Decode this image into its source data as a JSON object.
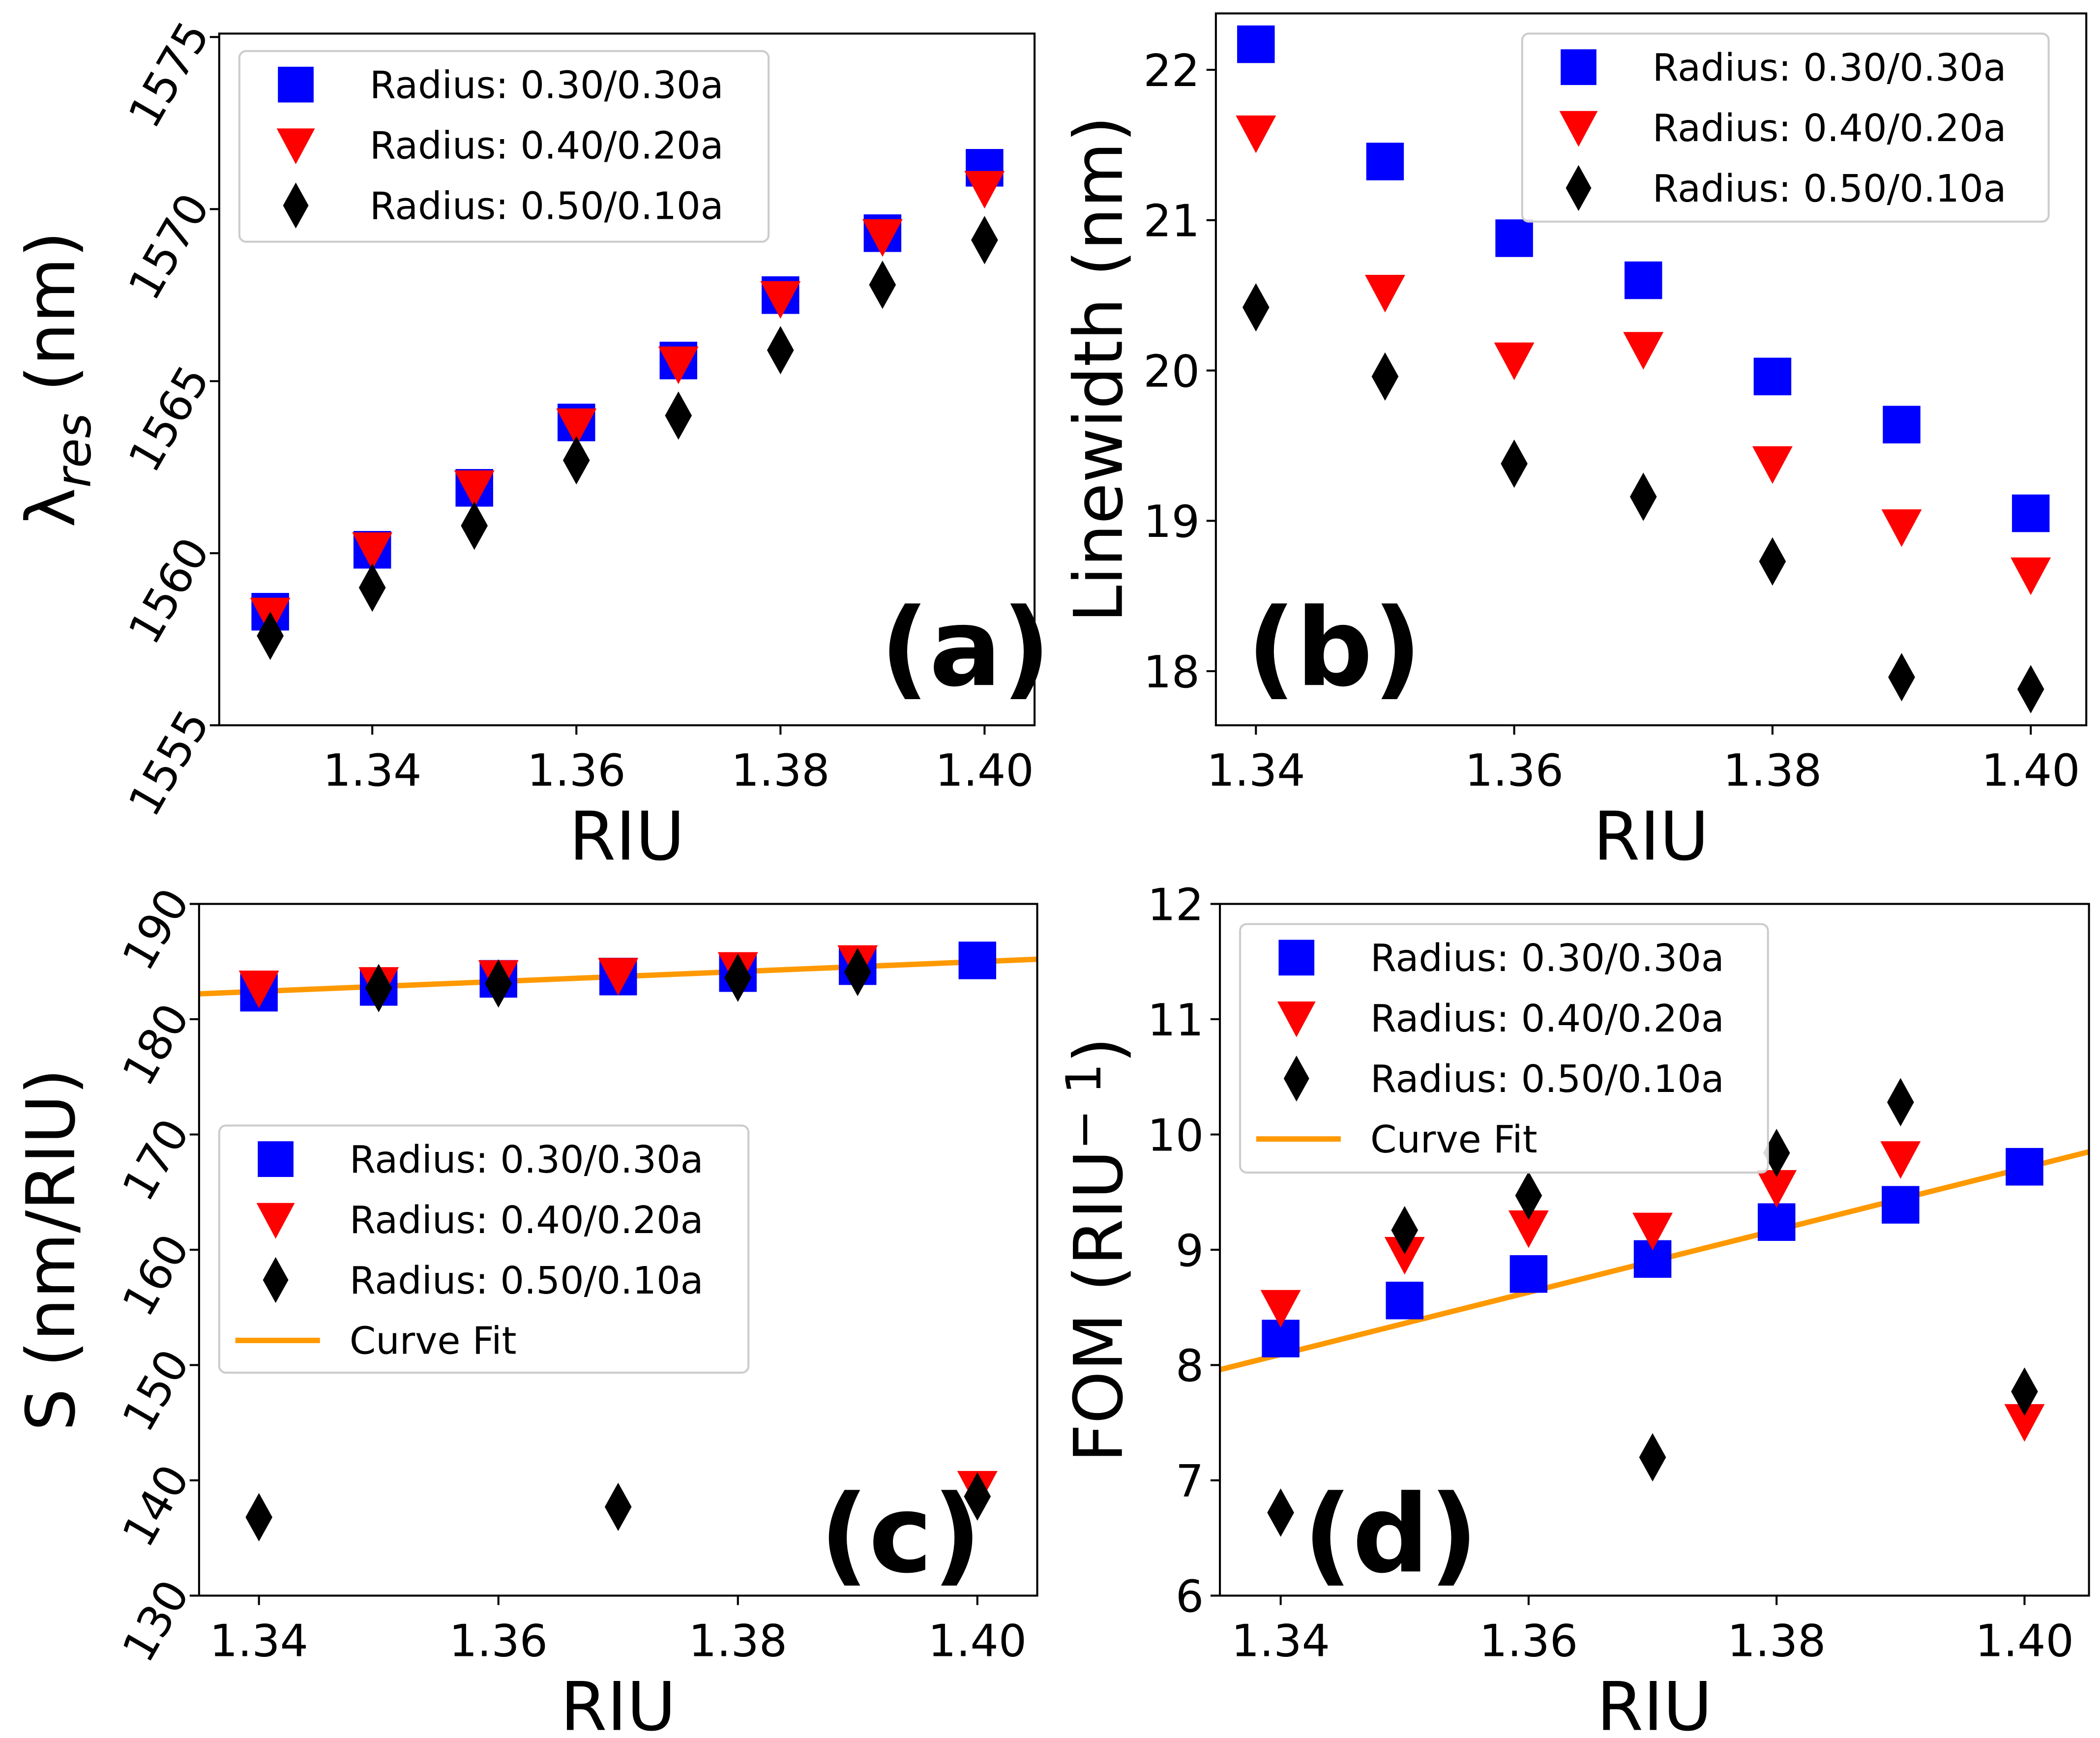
{
  "legend_labels": {
    "blue": "Radius: 0.30/0.30a",
    "red": "Radius: 0.40/0.20a",
    "black": "Radius: 0.50/0.10a",
    "fit": "Curve Fit"
  },
  "colors": {
    "blue": "#0000ff",
    "red": "#ff0000",
    "black": "#000000",
    "fit": "#ff9900"
  },
  "chart_data": [
    {
      "id": "a",
      "type": "scatter",
      "panel_label": "(a)",
      "xlabel": "RIU",
      "ylabel_main": "λ",
      "ylabel_sub": "res",
      "ylabel_tail": " (nm)",
      "xlim": [
        1.325,
        1.4049
      ],
      "ylim": [
        1555,
        1575.1
      ],
      "xticks": [
        1.34,
        1.36,
        1.38,
        1.4
      ],
      "xtick_labels": [
        "1.34",
        "1.36",
        "1.38",
        "1.40"
      ],
      "yticks": [
        1555,
        1560,
        1565,
        1570,
        1575
      ],
      "ytick_labels": [
        "1555",
        "1560",
        "1565",
        "1570",
        "1575"
      ],
      "legend": "top-left",
      "x": [
        1.33,
        1.34,
        1.35,
        1.36,
        1.37,
        1.38,
        1.39,
        1.4
      ],
      "series": [
        {
          "name": "Radius: 0.30/0.30a",
          "marker": "square",
          "color": "blue",
          "values": [
            1558.3,
            1560.1,
            1561.9,
            1563.8,
            1565.6,
            1567.5,
            1569.3,
            1571.2
          ]
        },
        {
          "name": "Radius: 0.40/0.20a",
          "marker": "triangle_down",
          "color": "red",
          "values": [
            1558.2,
            1560.1,
            1561.9,
            1563.7,
            1565.5,
            1567.4,
            1569.2,
            1570.6
          ]
        },
        {
          "name": "Radius: 0.50/0.10a",
          "marker": "diamond",
          "color": "black",
          "values": [
            1557.6,
            1559.0,
            1560.8,
            1562.7,
            1564.0,
            1565.9,
            1567.8,
            1569.1
          ]
        }
      ]
    },
    {
      "id": "b",
      "type": "scatter",
      "panel_label": "(b)",
      "xlabel": "RIU",
      "ylabel": "Linewidth (nm)",
      "xlim": [
        1.3369,
        1.4043
      ],
      "ylim": [
        17.64,
        22.375
      ],
      "xticks": [
        1.34,
        1.36,
        1.38,
        1.4
      ],
      "xtick_labels": [
        "1.34",
        "1.36",
        "1.38",
        "1.40"
      ],
      "yticks": [
        18,
        19,
        20,
        21,
        22
      ],
      "ytick_labels": [
        "18",
        "19",
        "20",
        "21",
        "22"
      ],
      "legend": "top-right",
      "x": [
        1.34,
        1.35,
        1.36,
        1.37,
        1.38,
        1.39,
        1.4
      ],
      "series": [
        {
          "name": "Radius: 0.30/0.30a",
          "marker": "square",
          "color": "blue",
          "values": [
            22.17,
            21.39,
            20.88,
            20.6,
            19.96,
            19.64,
            19.05
          ]
        },
        {
          "name": "Radius: 0.40/0.20a",
          "marker": "triangle_down",
          "color": "red",
          "values": [
            21.58,
            20.52,
            20.07,
            20.14,
            19.38,
            18.96,
            18.64
          ]
        },
        {
          "name": "Radius: 0.50/0.10a",
          "marker": "diamond",
          "color": "black",
          "values": [
            20.42,
            19.96,
            19.38,
            19.16,
            18.73,
            17.96,
            17.88
          ]
        }
      ]
    },
    {
      "id": "c",
      "type": "scatter",
      "panel_label": "(c)",
      "xlabel": "RIU",
      "ylabel": "S (nm/RIU)",
      "xlim": [
        1.335,
        1.405
      ],
      "ylim": [
        130,
        190
      ],
      "xticks": [
        1.34,
        1.36,
        1.38,
        1.4
      ],
      "xtick_labels": [
        "1.34",
        "1.36",
        "1.38",
        "1.40"
      ],
      "yticks": [
        130,
        140,
        150,
        160,
        170,
        180,
        190
      ],
      "ytick_labels": [
        "130",
        "140",
        "150",
        "160",
        "170",
        "180",
        "190"
      ],
      "legend": "center-left",
      "x": [
        1.34,
        1.35,
        1.36,
        1.37,
        1.38,
        1.39,
        1.4
      ],
      "series": [
        {
          "name": "Radius: 0.30/0.30a",
          "marker": "square",
          "color": "blue",
          "values": [
            182.3,
            182.8,
            183.5,
            183.7,
            184.0,
            184.6,
            185.1
          ]
        },
        {
          "name": "Radius: 0.40/0.20a",
          "marker": "triangle_down",
          "color": "red",
          "values": [
            182.7,
            183.0,
            183.6,
            183.8,
            184.3,
            184.9,
            139.3
          ]
        },
        {
          "name": "Radius: 0.50/0.10a",
          "marker": "diamond",
          "color": "black",
          "values": [
            136.8,
            182.7,
            183.1,
            137.7,
            183.6,
            184.1,
            138.6
          ]
        }
      ],
      "fit": {
        "name": "Curve Fit",
        "x": [
          1.335,
          1.405
        ],
        "y": [
          182.2,
          185.2
        ]
      }
    },
    {
      "id": "d",
      "type": "scatter",
      "panel_label": "(d)",
      "xlabel": "RIU",
      "ylabel_main": "FOM (RIU",
      "ylabel_sup": "− 1",
      "ylabel_tail": ")",
      "xlim": [
        1.3351,
        1.4052
      ],
      "ylim": [
        6,
        12
      ],
      "xticks": [
        1.34,
        1.36,
        1.38,
        1.4
      ],
      "xtick_labels": [
        "1.34",
        "1.36",
        "1.38",
        "1.40"
      ],
      "yticks": [
        6,
        7,
        8,
        9,
        10,
        11,
        12
      ],
      "ytick_labels": [
        "6",
        "7",
        "8",
        "9",
        "10",
        "11",
        "12"
      ],
      "legend": "top-left",
      "x": [
        1.34,
        1.35,
        1.36,
        1.37,
        1.38,
        1.39,
        1.4
      ],
      "series": [
        {
          "name": "Radius: 0.30/0.30a",
          "marker": "square",
          "color": "blue",
          "values": [
            8.23,
            8.56,
            8.79,
            8.92,
            9.24,
            9.39,
            9.72
          ]
        },
        {
          "name": "Radius: 0.40/0.20a",
          "marker": "triangle_down",
          "color": "red",
          "values": [
            8.5,
            8.96,
            9.19,
            9.17,
            9.54,
            9.79,
            7.51
          ]
        },
        {
          "name": "Radius: 0.50/0.10a",
          "marker": "diamond",
          "color": "black",
          "values": [
            6.72,
            9.17,
            9.47,
            7.2,
            9.84,
            10.28,
            7.77
          ]
        }
      ],
      "fit": {
        "name": "Curve Fit",
        "x": [
          1.3351,
          1.4052
        ],
        "y": [
          7.96,
          9.85
        ]
      }
    }
  ]
}
